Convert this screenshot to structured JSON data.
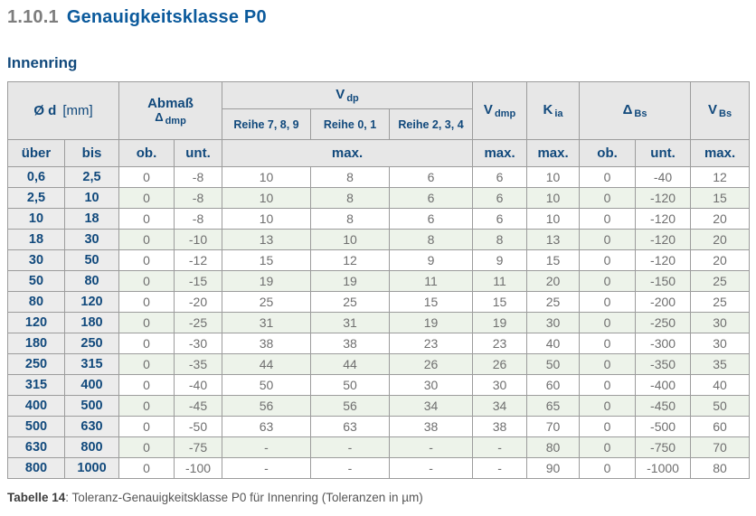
{
  "page": {
    "heading_number": "1.10.1",
    "heading_title": "Genauigkeitsklasse P0",
    "section_title": "Innenring",
    "caption_label": "Tabelle 14",
    "caption_text": ": Toleranz-Genauigkeitsklasse P0 für Innenring (Toleranzen in µm)"
  },
  "colors": {
    "brand_blue": "#0b5a9c",
    "navy_text": "#11497c",
    "heading_number_gray": "#7d7d7d",
    "header_bg": "#e7e7e7",
    "id_column_bg": "#ececec",
    "alt_row_green": "#edf3ea",
    "border_gray": "#9c9c9c",
    "data_text_gray": "#6f6f6f"
  },
  "table": {
    "header": {
      "od": {
        "main": "Ø d",
        "unit": "[mm]"
      },
      "abmass": {
        "line1": "Abmaß",
        "sym": "Δ",
        "sub": "dmp"
      },
      "vdp": {
        "main": "V",
        "sub": "dp"
      },
      "vdp_series": [
        "Reihe 7, 8, 9",
        "Reihe 0, 1",
        "Reihe 2, 3, 4"
      ],
      "vdmp": {
        "main": "V",
        "sub": "dmp"
      },
      "kia": {
        "main": "K",
        "sub": "ia"
      },
      "dbs": {
        "main": "Δ",
        "sub": "Bs"
      },
      "vbs": {
        "main": "V",
        "sub": "Bs"
      },
      "sub_row": {
        "ueber": "über",
        "bis": "bis",
        "ob1": "ob.",
        "unt1": "unt.",
        "max_vdp": "max.",
        "max_vdmp": "max.",
        "max_kia": "max.",
        "ob2": "ob.",
        "unt2": "unt.",
        "max_vbs": "max."
      }
    },
    "rows": [
      [
        "0,6",
        "2,5",
        "0",
        "-8",
        "10",
        "8",
        "6",
        "6",
        "10",
        "0",
        "-40",
        "12"
      ],
      [
        "2,5",
        "10",
        "0",
        "-8",
        "10",
        "8",
        "6",
        "6",
        "10",
        "0",
        "-120",
        "15"
      ],
      [
        "10",
        "18",
        "0",
        "-8",
        "10",
        "8",
        "6",
        "6",
        "10",
        "0",
        "-120",
        "20"
      ],
      [
        "18",
        "30",
        "0",
        "-10",
        "13",
        "10",
        "8",
        "8",
        "13",
        "0",
        "-120",
        "20"
      ],
      [
        "30",
        "50",
        "0",
        "-12",
        "15",
        "12",
        "9",
        "9",
        "15",
        "0",
        "-120",
        "20"
      ],
      [
        "50",
        "80",
        "0",
        "-15",
        "19",
        "19",
        "11",
        "11",
        "20",
        "0",
        "-150",
        "25"
      ],
      [
        "80",
        "120",
        "0",
        "-20",
        "25",
        "25",
        "15",
        "15",
        "25",
        "0",
        "-200",
        "25"
      ],
      [
        "120",
        "180",
        "0",
        "-25",
        "31",
        "31",
        "19",
        "19",
        "30",
        "0",
        "-250",
        "30"
      ],
      [
        "180",
        "250",
        "0",
        "-30",
        "38",
        "38",
        "23",
        "23",
        "40",
        "0",
        "-300",
        "30"
      ],
      [
        "250",
        "315",
        "0",
        "-35",
        "44",
        "44",
        "26",
        "26",
        "50",
        "0",
        "-350",
        "35"
      ],
      [
        "315",
        "400",
        "0",
        "-40",
        "50",
        "50",
        "30",
        "30",
        "60",
        "0",
        "-400",
        "40"
      ],
      [
        "400",
        "500",
        "0",
        "-45",
        "56",
        "56",
        "34",
        "34",
        "65",
        "0",
        "-450",
        "50"
      ],
      [
        "500",
        "630",
        "0",
        "-50",
        "63",
        "63",
        "38",
        "38",
        "70",
        "0",
        "-500",
        "60"
      ],
      [
        "630",
        "800",
        "0",
        "-75",
        "-",
        "-",
        "-",
        "-",
        "80",
        "0",
        "-750",
        "70"
      ],
      [
        "800",
        "1000",
        "0",
        "-100",
        "-",
        "-",
        "-",
        "-",
        "90",
        "0",
        "-1000",
        "80"
      ]
    ]
  }
}
